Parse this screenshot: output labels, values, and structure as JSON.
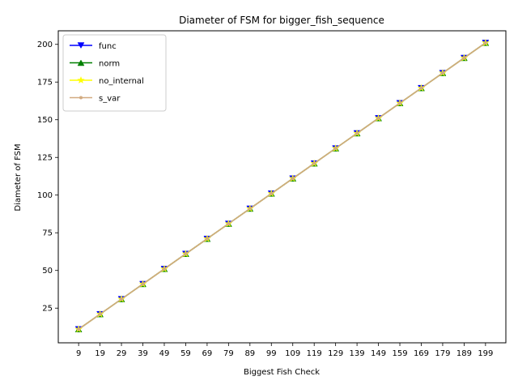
{
  "chart_data": {
    "type": "line",
    "title": "Diameter of FSM for bigger_fish_sequence",
    "xlabel": "Biggest Fish Check",
    "ylabel": "Diameter of FSM",
    "x": [
      9,
      19,
      29,
      39,
      49,
      59,
      69,
      79,
      89,
      99,
      109,
      119,
      129,
      139,
      149,
      159,
      169,
      179,
      189,
      199
    ],
    "x_tick_labels": [
      "9",
      "19",
      "29",
      "39",
      "49",
      "59",
      "69",
      "79",
      "89",
      "99",
      "109",
      "119",
      "129",
      "139",
      "149",
      "159",
      "169",
      "179",
      "189",
      "199"
    ],
    "ylim": [
      2,
      209
    ],
    "y_ticks": [
      25,
      50,
      75,
      100,
      125,
      150,
      175,
      200
    ],
    "y_tick_labels": [
      "25",
      "50",
      "75",
      "100",
      "125",
      "150",
      "175",
      "200"
    ],
    "grid": false,
    "legend_position": "top-left",
    "series": [
      {
        "name": "func",
        "color": "#0000ff",
        "marker": "triangle-down",
        "values": [
          11,
          21,
          31,
          41,
          51,
          61,
          71,
          81,
          91,
          101,
          111,
          121,
          131,
          141,
          151,
          161,
          171,
          181,
          191,
          201
        ]
      },
      {
        "name": "norm",
        "color": "#008000",
        "marker": "triangle-up",
        "values": [
          11,
          21,
          31,
          41,
          51,
          61,
          71,
          81,
          91,
          101,
          111,
          121,
          131,
          141,
          151,
          161,
          171,
          181,
          191,
          201
        ]
      },
      {
        "name": "no_internal",
        "color": "#ffff00",
        "marker": "star",
        "values": [
          11,
          21,
          31,
          41,
          51,
          61,
          71,
          81,
          91,
          101,
          111,
          121,
          131,
          141,
          151,
          161,
          171,
          181,
          191,
          201
        ]
      },
      {
        "name": "s_var",
        "color": "#d2aa80",
        "marker": "dot",
        "values": [
          11,
          21,
          31,
          41,
          51,
          61,
          71,
          81,
          91,
          101,
          111,
          121,
          131,
          141,
          151,
          161,
          171,
          181,
          191,
          201
        ]
      }
    ]
  }
}
